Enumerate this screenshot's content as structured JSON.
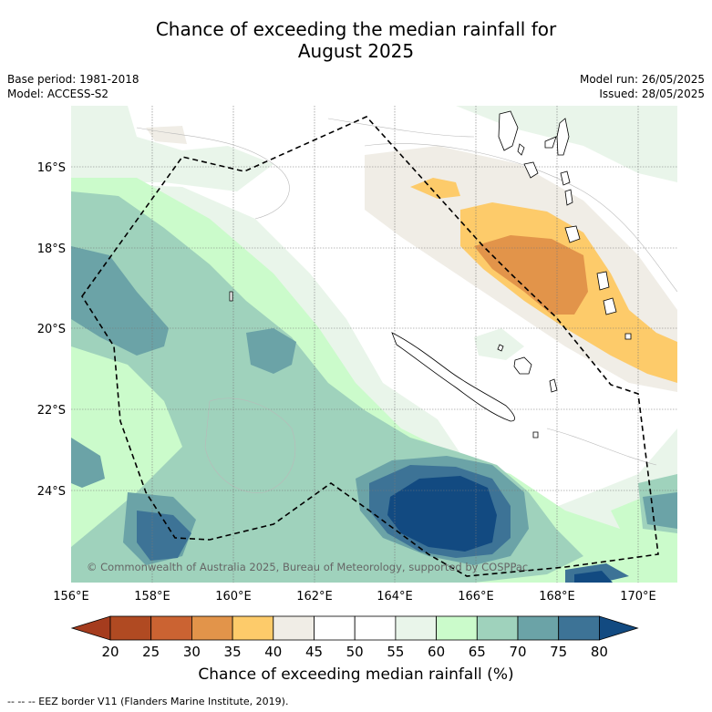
{
  "title_line1": "Chance of exceeding the median rainfall for",
  "title_line2": "August 2025",
  "meta_left": [
    "Base period: 1981-2018",
    "Model: ACCESS-S2"
  ],
  "meta_right": [
    "Model run: 26/05/2025",
    "Issued: 28/05/2025"
  ],
  "lon_ticks": [
    "156°E",
    "158°E",
    "160°E",
    "162°E",
    "164°E",
    "166°E",
    "168°E",
    "170°E"
  ],
  "lat_ticks": [
    "16°S",
    "18°S",
    "20°S",
    "22°S",
    "24°S"
  ],
  "copyright": "© Commonwealth of Australia 2025, Bureau of Meteorology, supported by COSPPac",
  "colorbar": {
    "label": "Chance of exceeding median rainfall (%)",
    "ticks": [
      "20",
      "25",
      "30",
      "35",
      "40",
      "45",
      "50",
      "55",
      "60",
      "65",
      "70",
      "75",
      "80"
    ],
    "colors": [
      "#a53c1e",
      "#b04a22",
      "#cb6332",
      "#e2944a",
      "#fdcb6a",
      "#f0ede6",
      "#ffffff",
      "#ffffff",
      "#e9f5ea",
      "#cbfbcb",
      "#9fd2bc",
      "#6ba3a7",
      "#3d7396",
      "#124a81"
    ]
  },
  "footnote": "--  --  -- EEZ border V11 (Flanders Marine Institute, 2019)."
}
